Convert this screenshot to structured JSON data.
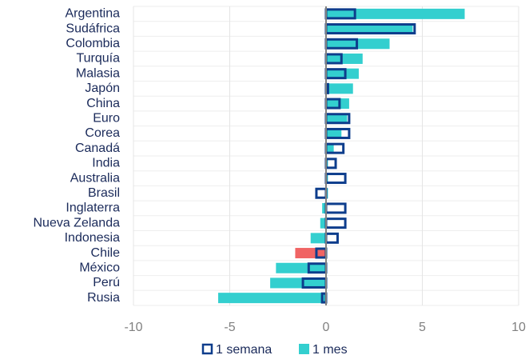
{
  "chart_data": {
    "type": "hbar",
    "categories": [
      "Argentina",
      "Sudáfrica",
      "Colombia",
      "Turquía",
      "Malasia",
      "Japón",
      "China",
      "Euro",
      "Corea",
      "Canadá",
      "India",
      "Australia",
      "Brasil",
      "Inglaterra",
      "Nueva Zelanda",
      "Indonesia",
      "Chile",
      "México",
      "Perú",
      "Rusia"
    ],
    "series": [
      {
        "name": "1 mes",
        "color": "#33cfcf",
        "colors": [
          "#33cfcf",
          "#33cfcf",
          "#33cfcf",
          "#33cfcf",
          "#33cfcf",
          "#33cfcf",
          "#33cfcf",
          "#33cfcf",
          "#33cfcf",
          "#33cfcf",
          "#33cfcf",
          "#33cfcf",
          "#33cfcf",
          "#33cfcf",
          "#33cfcf",
          "#33cfcf",
          "#f06464",
          "#33cfcf",
          "#33cfcf",
          "#33cfcf"
        ],
        "values": [
          7.2,
          4.5,
          3.3,
          1.9,
          1.7,
          1.4,
          1.2,
          1.1,
          0.8,
          0.4,
          0.1,
          0.1,
          0.1,
          -0.2,
          -0.3,
          -0.8,
          -1.6,
          -2.6,
          -2.9,
          -5.6
        ]
      },
      {
        "name": "1 semana",
        "color": "#0d3d8c",
        "values": [
          1.5,
          4.6,
          1.6,
          0.8,
          1.0,
          0.1,
          0.7,
          1.2,
          1.2,
          0.9,
          0.5,
          1.0,
          -0.5,
          1.0,
          1.0,
          0.6,
          -0.5,
          -0.9,
          -1.2,
          -0.2
        ]
      }
    ],
    "xlim": [
      -10,
      10
    ],
    "xticks": [
      -10,
      -5,
      0,
      5,
      10
    ],
    "grid": true
  }
}
